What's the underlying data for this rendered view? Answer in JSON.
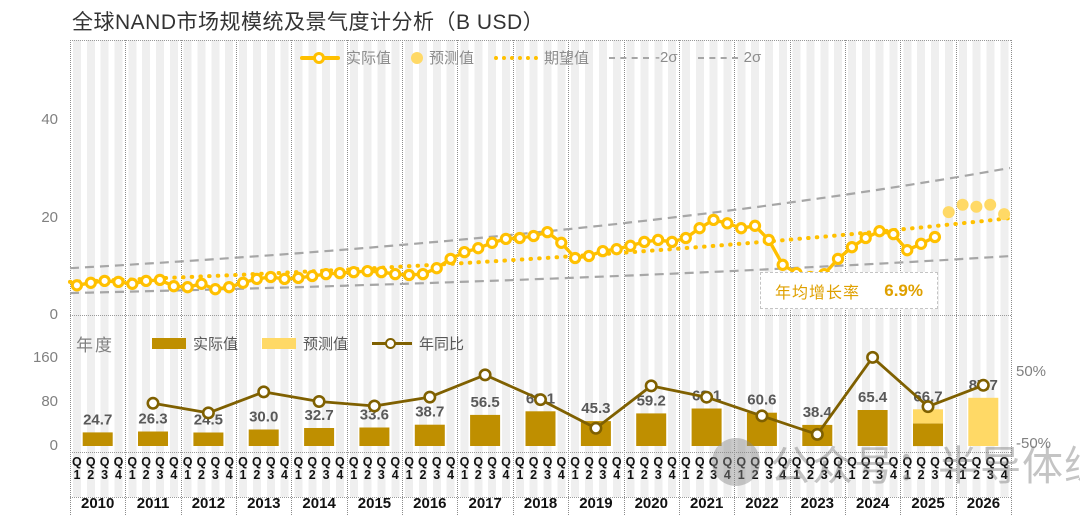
{
  "title": "全球NAND市场规模统及景气度计分析（B USD）",
  "watermark": {
    "icon": "circle-logo",
    "text": "公众号：半导体综研"
  },
  "top_chart": {
    "legend": [
      {
        "label": "实际值",
        "swatch": "line-ring",
        "color": "#FFC000"
      },
      {
        "label": "预测值",
        "swatch": "dot",
        "color": "#FFD966"
      },
      {
        "label": "期望值",
        "swatch": "dotted",
        "color": "#FFC000"
      },
      {
        "label": "-2σ",
        "swatch": "dashed",
        "color": "#A6A6A6"
      },
      {
        "label": "2σ",
        "swatch": "dashed",
        "color": "#A6A6A6"
      }
    ],
    "yticks": [
      0,
      20,
      40
    ],
    "annotation": {
      "label": "年均增长率",
      "value": "6.9%"
    }
  },
  "bottom_chart": {
    "axis_label": "年度",
    "legend": [
      {
        "label": "实际值",
        "swatch": "bar",
        "color": "#BF8F00"
      },
      {
        "label": "预测值",
        "swatch": "bar",
        "color": "#FFD966"
      },
      {
        "label": "年同比",
        "swatch": "line-ring",
        "color": "#7F6000"
      }
    ],
    "left_yticks": [
      0,
      80,
      160
    ],
    "right_yticks": [
      "50%",
      "-50%"
    ],
    "quarter_labels": [
      "Q1",
      "Q2",
      "Q3",
      "Q4"
    ]
  },
  "chart_data": [
    {
      "type": "line",
      "title": "全球NAND市场规模统及景气度计分析（B USD）",
      "x_unit": "quarter",
      "years": [
        2010,
        2011,
        2012,
        2013,
        2014,
        2015,
        2016,
        2017,
        2018,
        2019,
        2020,
        2021,
        2022,
        2023,
        2024,
        2025,
        2026
      ],
      "quarters_per_year": 4,
      "ylim": [
        0,
        46
      ],
      "yticks": [
        0,
        20,
        40
      ],
      "legend_position": "top",
      "grid": "vertical-dotted-by-year",
      "series": [
        {
          "name": "实际值",
          "style": "line-ring-markers",
          "color": "#FFC000",
          "values": [
            6.1,
            6.6,
            7.0,
            6.8,
            6.4,
            7.0,
            7.2,
            5.9,
            5.7,
            6.4,
            5.3,
            5.7,
            6.6,
            7.4,
            7.8,
            7.4,
            7.6,
            8.0,
            8.4,
            8.6,
            8.8,
            9.0,
            8.8,
            8.4,
            8.2,
            8.4,
            9.6,
            11.5,
            12.9,
            13.7,
            14.8,
            15.6,
            15.8,
            16.2,
            17.0,
            14.8,
            11.7,
            12.1,
            13.1,
            13.5,
            14.2,
            15.0,
            15.4,
            15.0,
            15.8,
            17.8,
            19.5,
            18.8,
            17.8,
            18.3,
            15.4,
            10.3,
            8.6,
            7.8,
            8.4,
            11.5,
            13.9,
            15.8,
            17.2,
            16.6,
            13.3,
            14.6,
            16.0
          ]
        },
        {
          "name": "预测值",
          "style": "filled-dots",
          "color": "#FFD966",
          "start_index": 63,
          "values": [
            21.1,
            22.6,
            22.2,
            22.6,
            20.7
          ]
        },
        {
          "name": "期望值",
          "style": "dotted-trend",
          "color": "#FFC000",
          "trend": "exponential",
          "start": 6.8,
          "end": 19.9
        },
        {
          "name": "2σ",
          "style": "dashed-trend",
          "color": "#A6A6A6",
          "trend": "exponential",
          "start": 9.6,
          "end": 30.2
        },
        {
          "name": "-2σ",
          "style": "dashed-trend",
          "color": "#A6A6A6",
          "trend": "exponential",
          "start": 4.5,
          "end": 12.1
        }
      ],
      "annotation": {
        "label": "年均增长率",
        "value": "6.9%"
      }
    },
    {
      "type": "bar+line",
      "categories": [
        2010,
        2011,
        2012,
        2013,
        2014,
        2015,
        2016,
        2017,
        2018,
        2019,
        2020,
        2021,
        2022,
        2023,
        2024,
        2025,
        2026
      ],
      "bar_totals": [
        24.7,
        26.3,
        24.5,
        30.0,
        32.7,
        33.6,
        38.7,
        56.5,
        63.1,
        45.3,
        59.2,
        68.1,
        60.6,
        38.4,
        65.4,
        66.7,
        87.7
      ],
      "bar_labels": [
        "24.7",
        "26.3",
        "24.5",
        "30.0",
        "32.7",
        "33.6",
        "38.7",
        "56.5",
        "63.1",
        "45.3",
        "59.2",
        "68.1",
        "60.6",
        "38.4",
        "65.4",
        "66.7",
        "87.7"
      ],
      "series": [
        {
          "name": "实际值",
          "type": "bar",
          "color": "#BF8F00",
          "values": [
            24.7,
            26.3,
            24.5,
            30.0,
            32.7,
            33.6,
            38.7,
            56.5,
            63.1,
            45.3,
            59.2,
            68.1,
            60.6,
            38.4,
            65.4,
            41.0,
            null
          ]
        },
        {
          "name": "预测值",
          "type": "bar",
          "color": "#FFD966",
          "stacked_on": "实际值",
          "values": [
            null,
            null,
            null,
            null,
            null,
            null,
            null,
            null,
            null,
            null,
            null,
            null,
            null,
            null,
            null,
            25.7,
            87.7
          ]
        },
        {
          "name": "年同比",
          "type": "line",
          "axis": "right",
          "unit": "%",
          "color": "#7F6000",
          "values": [
            null,
            6.5,
            -6.8,
            22.4,
            9.0,
            2.8,
            15.2,
            46.0,
            11.7,
            -28.2,
            30.7,
            15.0,
            -11.0,
            -36.6,
            70.3,
            2.0,
            31.5
          ]
        }
      ],
      "left_yticks": [
        0,
        80,
        160
      ],
      "right_yticks": [
        {
          "label": "50%",
          "value": 50
        },
        {
          "label": "-50%",
          "value": -50
        }
      ]
    }
  ]
}
